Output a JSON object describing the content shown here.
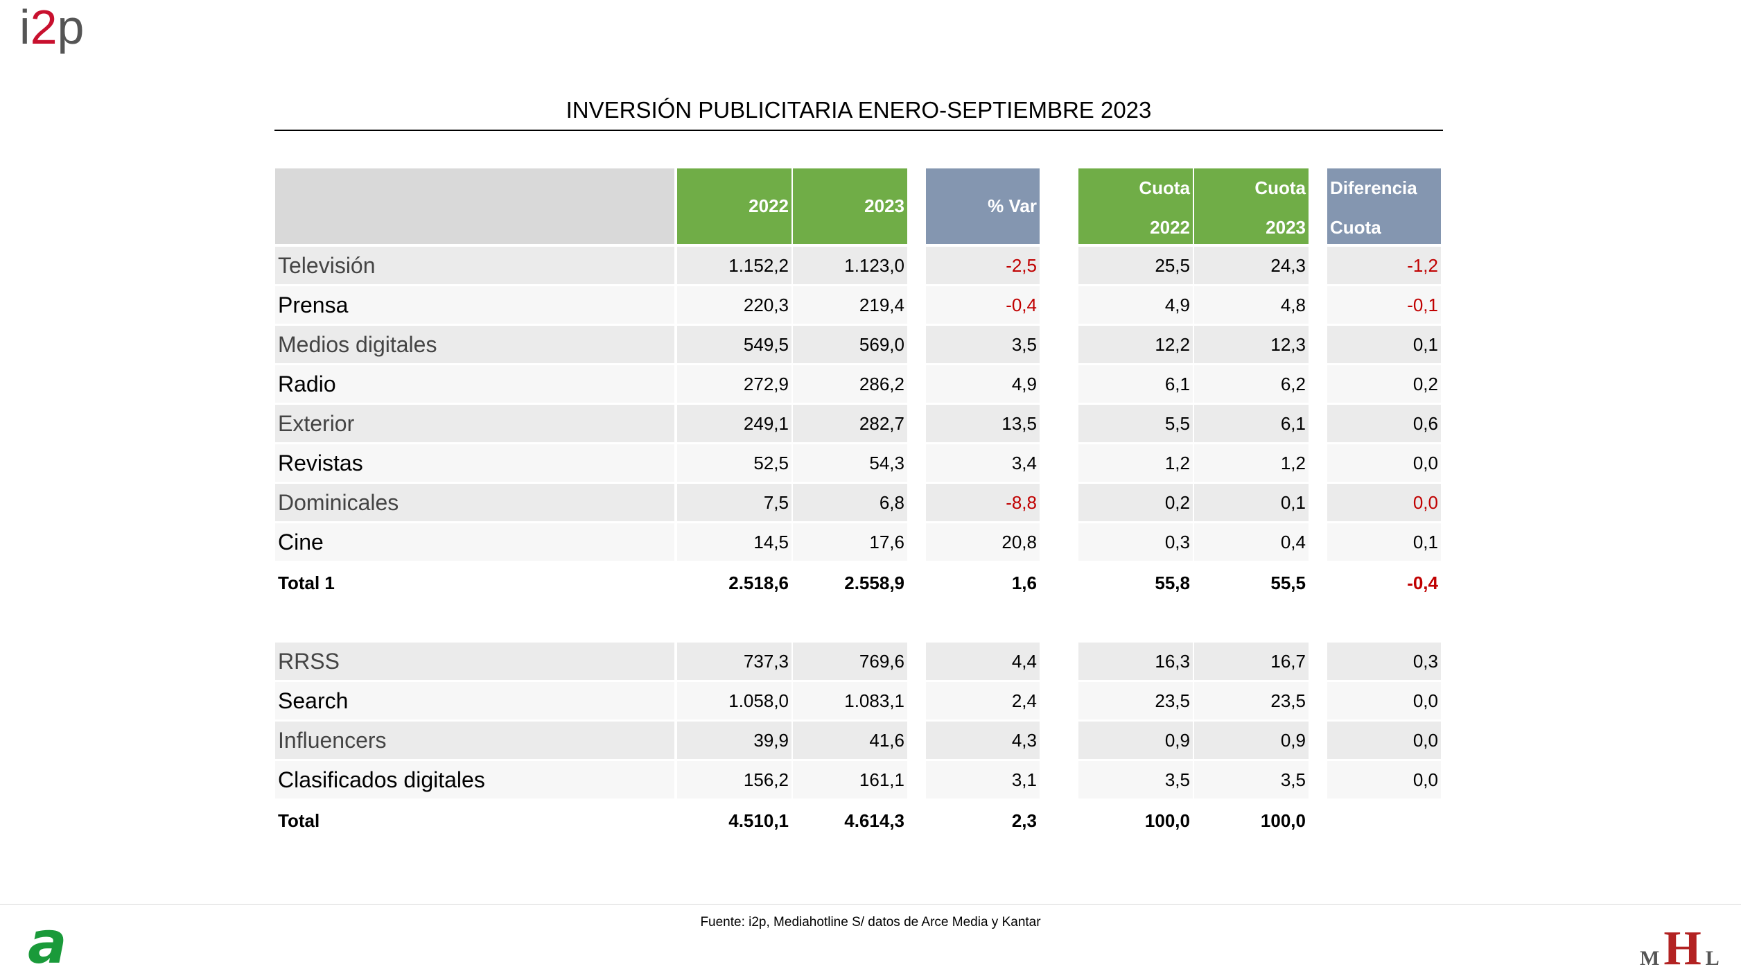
{
  "brand": {
    "logo_left": "i",
    "logo_mid": "2",
    "logo_right": "p"
  },
  "title": "INVERSIÓN PUBLICITARIA ENERO-SEPTIEMBRE 2023",
  "header": {
    "col_2022": "2022",
    "col_2023": "2023",
    "col_var": "% Var",
    "cuota_2022_top": "Cuota",
    "cuota_2022_bottom": "2022",
    "cuota_2023_top": "Cuota",
    "cuota_2023_bottom": "2023",
    "dif_top": "Diferencia",
    "dif_bottom": "Cuota"
  },
  "rows": [
    {
      "label": "Televisión",
      "v2022": "1.152,2",
      "v2023": "1.123,0",
      "var": "-2,5",
      "c2022": "25,5",
      "c2023": "24,3",
      "dif": "-1,2"
    },
    {
      "label": "Prensa",
      "v2022": "220,3",
      "v2023": "219,4",
      "var": "-0,4",
      "c2022": "4,9",
      "c2023": "4,8",
      "dif": "-0,1"
    },
    {
      "label": "Medios digitales",
      "v2022": "549,5",
      "v2023": "569,0",
      "var": "3,5",
      "c2022": "12,2",
      "c2023": "12,3",
      "dif": "0,1"
    },
    {
      "label": "Radio",
      "v2022": "272,9",
      "v2023": "286,2",
      "var": "4,9",
      "c2022": "6,1",
      "c2023": "6,2",
      "dif": "0,2"
    },
    {
      "label": "Exterior",
      "v2022": "249,1",
      "v2023": "282,7",
      "var": "13,5",
      "c2022": "5,5",
      "c2023": "6,1",
      "dif": "0,6"
    },
    {
      "label": "Revistas",
      "v2022": "52,5",
      "v2023": "54,3",
      "var": "3,4",
      "c2022": "1,2",
      "c2023": "1,2",
      "dif": "0,0"
    },
    {
      "label": "Dominicales",
      "v2022": "7,5",
      "v2023": "6,8",
      "var": "-8,8",
      "c2022": "0,2",
      "c2023": "0,1",
      "dif": "0,0"
    },
    {
      "label": "Cine",
      "v2022": "14,5",
      "v2023": "17,6",
      "var": "20,8",
      "c2022": "0,3",
      "c2023": "0,4",
      "dif": "0,1"
    },
    {
      "label": "Total 1",
      "v2022": "2.518,6",
      "v2023": "2.558,9",
      "var": "1,6",
      "c2022": "55,8",
      "c2023": "55,5",
      "dif": "-0,4"
    },
    {
      "label": "RRSS",
      "v2022": "737,3",
      "v2023": "769,6",
      "var": "4,4",
      "c2022": "16,3",
      "c2023": "16,7",
      "dif": "0,3"
    },
    {
      "label": "Search",
      "v2022": "1.058,0",
      "v2023": "1.083,1",
      "var": "2,4",
      "c2022": "23,5",
      "c2023": "23,5",
      "dif": "0,0"
    },
    {
      "label": "Influencers",
      "v2022": "39,9",
      "v2023": "41,6",
      "var": "4,3",
      "c2022": "0,9",
      "c2023": "0,9",
      "dif": "0,0"
    },
    {
      "label": "Clasificados digitales",
      "v2022": "156,2",
      "v2023": "161,1",
      "var": "3,1",
      "c2022": "3,5",
      "c2023": "3,5",
      "dif": "0,0"
    },
    {
      "label": "Total",
      "v2022": "4.510,1",
      "v2023": "4.614,3",
      "var": "2,3",
      "c2022": "100,0",
      "c2023": "100,0",
      "dif": ""
    }
  ],
  "footer": {
    "source": "Fuente: i2p, Mediahotline  S/ datos de Arce Media y Kantar",
    "logo_a": "a",
    "logo_m": "M",
    "logo_h": "H",
    "logo_l": "L"
  },
  "colors": {
    "green_header": "#70ad47",
    "blue_header": "#8496b0",
    "negative": "#c00000"
  }
}
